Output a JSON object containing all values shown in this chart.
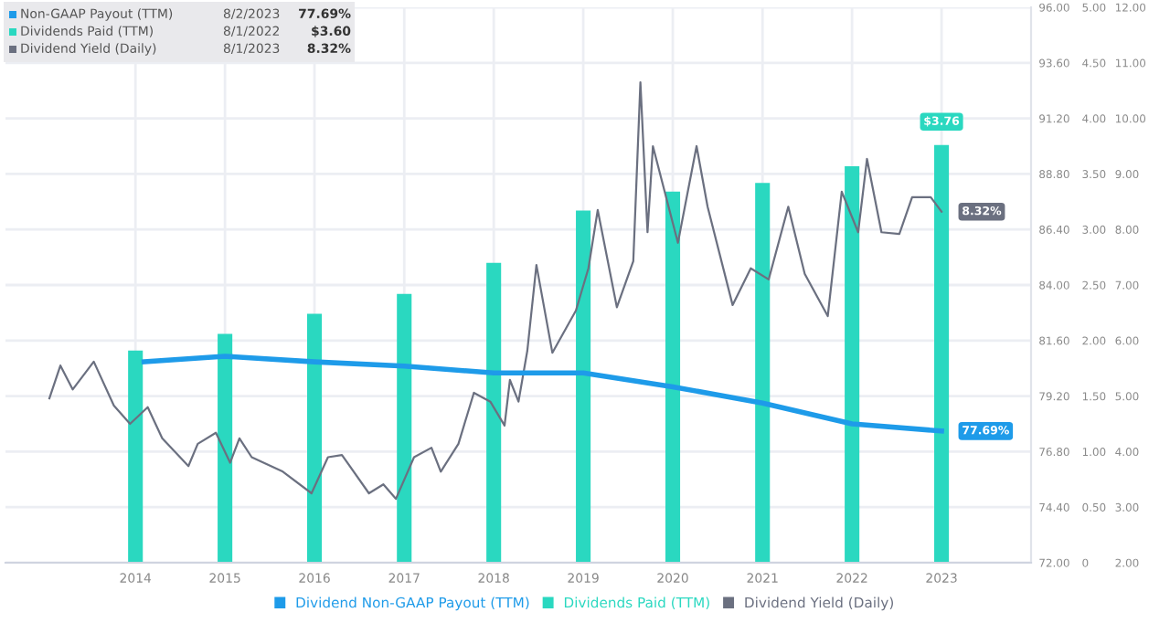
{
  "chart_data": {
    "type": "line",
    "xlim": [
      "2012-07-20",
      "2024-01-01"
    ],
    "xticks": [
      "2014",
      "2015",
      "2016",
      "2017",
      "2018",
      "2019",
      "2020",
      "2021",
      "2022",
      "2023"
    ],
    "ylim": [
      72,
      96
    ],
    "yticks": [
      {
        "value": 72,
        "label": "72.00"
      },
      {
        "value": 74.4,
        "label": "74.40"
      },
      {
        "value": 76.8,
        "label": "76.80"
      },
      {
        "value": 79.2,
        "label": "79.20"
      },
      {
        "value": 81.6,
        "label": "81.60"
      },
      {
        "value": 84,
        "label": "84.00"
      },
      {
        "value": 86.4,
        "label": "86.40"
      },
      {
        "value": 88.8,
        "label": "88.80"
      },
      {
        "value": 91.2,
        "label": "91.20"
      },
      {
        "value": 93.6,
        "label": "93.60"
      },
      {
        "value": 96,
        "label": "96.00"
      }
    ],
    "y2lim": [
      0,
      5
    ],
    "y2ticks": [
      0,
      {
        "value": 0.5,
        "label": "0.50"
      },
      {
        "value": 1,
        "label": "1.00"
      },
      {
        "value": 1.5,
        "label": "1.50"
      },
      {
        "value": 2,
        "label": "2.00"
      },
      {
        "value": 2.5,
        "label": "2.50"
      },
      {
        "value": 3,
        "label": "3.00"
      },
      {
        "value": 3.5,
        "label": "3.50"
      },
      {
        "value": 4,
        "label": "4.00"
      },
      {
        "value": 4.5,
        "label": "4.50"
      },
      {
        "value": 5,
        "label": "5.00"
      }
    ],
    "y3lim": [
      2,
      12
    ],
    "y3ticks": [
      {
        "value": 2,
        "label": "2.00"
      },
      {
        "value": 3,
        "label": "3.00"
      },
      {
        "value": 4,
        "label": "4.00"
      },
      {
        "value": 5,
        "label": "5.00"
      },
      {
        "value": 6,
        "label": "6.00"
      },
      {
        "value": 7,
        "label": "7.00"
      },
      {
        "value": 8,
        "label": "8.00"
      },
      {
        "value": 9,
        "label": "9.00"
      },
      {
        "value": 10,
        "label": "10.00"
      },
      {
        "value": 11,
        "label": "11.00"
      },
      {
        "value": 12,
        "label": "12.00"
      }
    ],
    "grid": true,
    "legend": "bottom",
    "marker": "none",
    "line_style": "solid",
    "annotations": [
      "Non-GAAP Payout (TTM)",
      "8/2/2023",
      "77.69%",
      "Dividends Paid (TTM)",
      "8/1/2022",
      "$3.60",
      "Dividend Yield (Daily)",
      "8/1/2023",
      "8.32%"
    ],
    "series": [
      {
        "name": "Dividend Non-GAAP Payout (TTM)",
        "axis": "y",
        "color": "#1e9be9",
        "x": [
          "2014-02-05",
          "2015-01-01",
          "2016-01-01",
          "2017-01-01",
          "2018-01-01",
          "2019-01-01",
          "2020-01-01",
          "2021-01-01",
          "2022-01-01",
          "2023-01-01"
        ],
        "values": [
          80.68,
          80.92,
          80.68,
          80.5,
          80.2,
          80.2,
          79.6,
          78.9,
          78.0,
          77.69
        ],
        "value_labels": [
          null,
          null,
          null,
          null,
          null,
          null,
          null,
          null,
          null,
          "77.69%"
        ]
      },
      {
        "name": "Dividends Paid (TTM)",
        "type": "bar",
        "axis": "y2",
        "color": "#2ad8c0",
        "x": [
          "2014-01-01",
          "2015-01-01",
          "2016-01-01",
          "2017-01-01",
          "2018-01-01",
          "2019-01-01",
          "2020-01-01",
          "2021-01-01",
          "2022-01-01",
          "2023-01-01"
        ],
        "values": [
          1.91,
          2.06,
          2.24,
          2.42,
          2.7,
          3.17,
          3.34,
          3.42,
          3.57,
          3.76
        ],
        "value_labels": [
          null,
          null,
          null,
          null,
          null,
          null,
          null,
          null,
          null,
          "$3.76"
        ]
      },
      {
        "name": "Dividend Yield (Daily)",
        "axis": "y3",
        "color": "#6b7080",
        "x": [
          "2013-01-15",
          "2013-03-01",
          "2013-04-20",
          "2013-07-15",
          "2013-10-05",
          "2013-12-10",
          "2014-02-20",
          "2014-04-20",
          "2014-08-05",
          "2014-09-12",
          "2014-11-25",
          "2015-01-22",
          "2015-03-01",
          "2015-04-20",
          "2015-08-25",
          "2015-12-20",
          "2016-02-25",
          "2016-04-22",
          "2016-08-10",
          "2016-10-08",
          "2016-11-28",
          "2017-02-10",
          "2017-04-22",
          "2017-05-30",
          "2017-08-10",
          "2017-10-12",
          "2017-12-18",
          "2018-02-14",
          "2018-03-08",
          "2018-04-12",
          "2018-05-18",
          "2018-06-24",
          "2018-08-28",
          "2018-12-02",
          "2019-01-22",
          "2019-03-01",
          "2019-05-18",
          "2019-07-24",
          "2019-08-22",
          "2019-09-20",
          "2019-10-12",
          "2020-01-22",
          "2020-04-07",
          "2020-05-22",
          "2020-09-01",
          "2020-11-14",
          "2021-01-26",
          "2021-04-16",
          "2021-06-22",
          "2021-09-24",
          "2021-11-20",
          "2022-01-26",
          "2022-03-03",
          "2022-05-01",
          "2022-07-13",
          "2022-09-03",
          "2022-11-18",
          "2023-01-01"
        ],
        "values": [
          4.96,
          5.55,
          5.12,
          5.62,
          4.83,
          4.5,
          4.8,
          4.24,
          3.74,
          4.14,
          4.34,
          3.8,
          4.24,
          3.9,
          3.64,
          3.25,
          3.9,
          3.94,
          3.25,
          3.41,
          3.15,
          3.9,
          4.07,
          3.64,
          4.14,
          5.06,
          4.9,
          4.47,
          5.29,
          4.9,
          5.82,
          7.36,
          5.78,
          6.54,
          7.3,
          8.35,
          6.6,
          7.43,
          10.65,
          7.95,
          9.5,
          7.76,
          9.5,
          8.41,
          6.64,
          7.3,
          7.1,
          8.41,
          7.2,
          6.44,
          8.68,
          7.95,
          9.27,
          7.95,
          7.92,
          8.58,
          8.58,
          8.32
        ],
        "value_labels": [
          null,
          null,
          null,
          null,
          null,
          null,
          null,
          null,
          null,
          null,
          null,
          null,
          null,
          null,
          null,
          null,
          null,
          null,
          null,
          null,
          null,
          null,
          null,
          null,
          null,
          null,
          null,
          null,
          null,
          null,
          null,
          null,
          null,
          null,
          null,
          null,
          null,
          null,
          null,
          null,
          null,
          null,
          null,
          null,
          null,
          null,
          null,
          null,
          null,
          null,
          null,
          null,
          null,
          null,
          null,
          null,
          null,
          "8.32%"
        ]
      }
    ]
  }
}
